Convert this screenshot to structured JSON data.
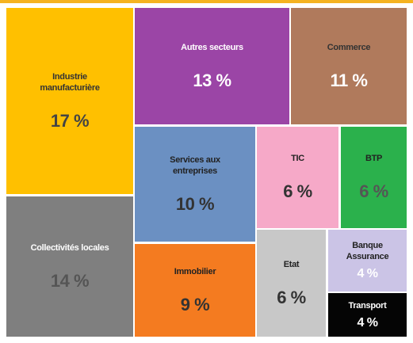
{
  "chart_data": {
    "type": "treemap",
    "categories": [
      "Industrie manufacturière",
      "Collectivités locales",
      "Autres secteurs",
      "Commerce",
      "Services aux entreprises",
      "Immobilier",
      "TIC",
      "BTP",
      "Etat",
      "Banque Assurance",
      "Transport"
    ],
    "values": [
      17,
      14,
      13,
      11,
      10,
      9,
      6,
      6,
      6,
      4,
      4
    ],
    "value_labels": [
      "17 %",
      "14 %",
      "13 %",
      "11 %",
      "10 %",
      "9 %",
      "6 %",
      "6 %",
      "6 %",
      "4 %",
      "4 %"
    ],
    "colors": [
      "#ffc000",
      "#7f7f7f",
      "#9b45a6",
      "#b07a5c",
      "#6b90c2",
      "#f47b20",
      "#f6a9c8",
      "#2bb14c",
      "#c8c8c8",
      "#cbc4e6",
      "#050505"
    ]
  }
}
